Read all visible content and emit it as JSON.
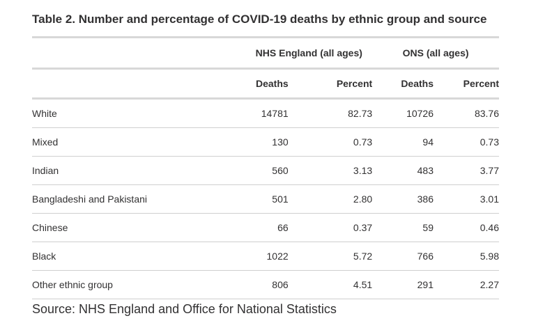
{
  "title": "Table 2. Number and percentage of COVID-19 deaths by ethnic group and source",
  "groups": {
    "nhs": "NHS England (all ages)",
    "ons": "ONS (all ages)"
  },
  "columns": {
    "nhs_deaths": "Deaths",
    "nhs_percent": "Percent",
    "ons_deaths": "Deaths",
    "ons_percent": "Percent"
  },
  "rows": [
    {
      "label": "White",
      "nhs_deaths": "14781",
      "nhs_percent": "82.73",
      "ons_deaths": "10726",
      "ons_percent": "83.76"
    },
    {
      "label": "Mixed",
      "nhs_deaths": "130",
      "nhs_percent": "0.73",
      "ons_deaths": "94",
      "ons_percent": "0.73"
    },
    {
      "label": "Indian",
      "nhs_deaths": "560",
      "nhs_percent": "3.13",
      "ons_deaths": "483",
      "ons_percent": "3.77"
    },
    {
      "label": "Bangladeshi and Pakistani",
      "nhs_deaths": "501",
      "nhs_percent": "2.80",
      "ons_deaths": "386",
      "ons_percent": "3.01"
    },
    {
      "label": "Chinese",
      "nhs_deaths": "66",
      "nhs_percent": "0.37",
      "ons_deaths": "59",
      "ons_percent": "0.46"
    },
    {
      "label": "Black",
      "nhs_deaths": "1022",
      "nhs_percent": "5.72",
      "ons_deaths": "766",
      "ons_percent": "5.98"
    },
    {
      "label": "Other ethnic group",
      "nhs_deaths": "806",
      "nhs_percent": "4.51",
      "ons_deaths": "291",
      "ons_percent": "2.27"
    }
  ],
  "source": "Source: NHS England and Office for National Statistics"
}
